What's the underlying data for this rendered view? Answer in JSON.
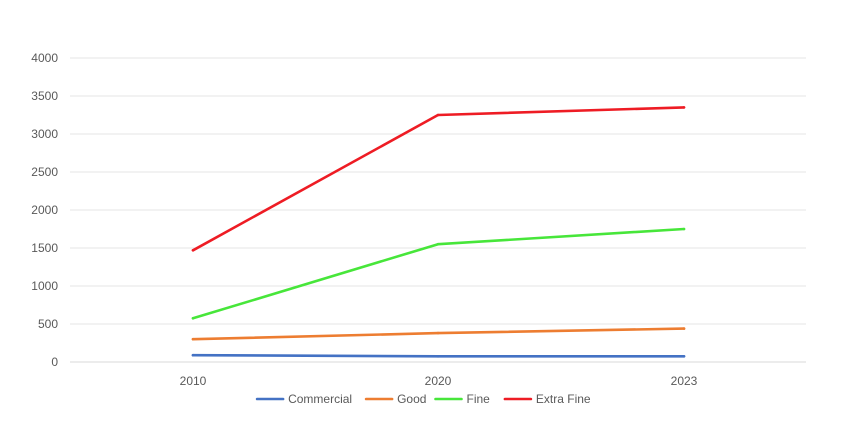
{
  "chart_data": {
    "type": "line",
    "title": "",
    "xlabel": "",
    "ylabel": "",
    "categories": [
      "2010",
      "2020",
      "2023"
    ],
    "ylim": [
      0,
      4000
    ],
    "yticks": [
      0,
      500,
      1000,
      1500,
      2000,
      2500,
      3000,
      3500,
      4000
    ],
    "grid": "horizontal",
    "legend_position": "bottom",
    "series": [
      {
        "name": "Commercial",
        "color": "#4472c4",
        "values": [
          90,
          75,
          75
        ]
      },
      {
        "name": "Good",
        "color": "#ed7d31",
        "values": [
          300,
          380,
          440
        ]
      },
      {
        "name": "Fine",
        "color": "#47e63a",
        "values": [
          575,
          1550,
          1750
        ]
      },
      {
        "name": "Extra Fine",
        "color": "#ee1c24",
        "values": [
          1470,
          3250,
          3350
        ]
      }
    ]
  }
}
